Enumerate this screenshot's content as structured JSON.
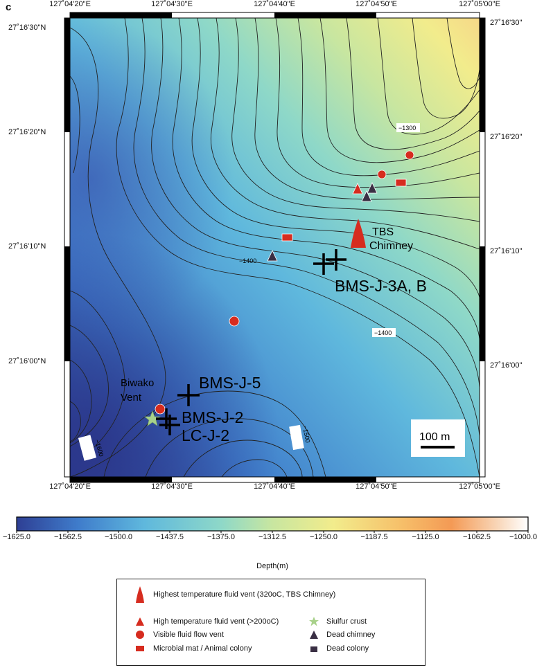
{
  "panel_letter": "c",
  "map": {
    "lon_ticks": [
      "127˚04'20\"E",
      "127˚04'30\"E",
      "127˚04'40\"E",
      "127˚04'50\"E",
      "127˚05'00\"E"
    ],
    "lat_ticks_left": [
      "27˚16'30\"N",
      "27˚16'20\"N",
      "27˚16'10\"N",
      "27˚16'00\"N"
    ],
    "lat_ticks_right": [
      "27˚16'30\"",
      "27˚16'20\"",
      "27˚16'10\"",
      "27˚16'00\""
    ],
    "contour_labels": [
      "−1300",
      "−1400",
      "−1400",
      "−1500",
      "−1600"
    ],
    "sites": {
      "tbs": "TBS",
      "chimney": "Chimney",
      "bms_j_3ab": "BMS-J-3A, B",
      "bms_j_5": "BMS-J-5",
      "bms_j_2": "BMS-J-2",
      "lc_j_2": "LC-J-2",
      "biwako": "Biwako",
      "vent": "Vent"
    },
    "scale_bar": "100 m",
    "colors": {
      "hydrothermal_red": "#d62c1f",
      "dead": "#3a2f44",
      "sulfur": "#a8d18a"
    }
  },
  "colorbar": {
    "labels": [
      "−1625.0",
      "−1562.5",
      "−1500.0",
      "−1437.5",
      "−1375.0",
      "−1312.5",
      "−1250.0",
      "−1187.5",
      "−1125.0",
      "−1062.5",
      "−1000.0"
    ],
    "title": "Depth(m)",
    "range": [
      -1625,
      -1000
    ],
    "stops": [
      "#2e3f94",
      "#3f7ccb",
      "#5fb8dd",
      "#8ed8c8",
      "#c8e6a0",
      "#f2ec8c",
      "#f6c06a",
      "#f49a55",
      "#f8d6b8",
      "#ffffff"
    ]
  },
  "legend": {
    "highest": "Highest temperature fluid vent (320oC, TBS Chimney)",
    "high_temp": "High temperature fluid vent (>200oC)",
    "visible": "Visible fluid flow vent",
    "microbial": "Microbial mat / Animal colony",
    "sulfur": "Siulfur crust",
    "dead_chimney": "Dead chimney",
    "dead_colony": "Dead colony"
  }
}
